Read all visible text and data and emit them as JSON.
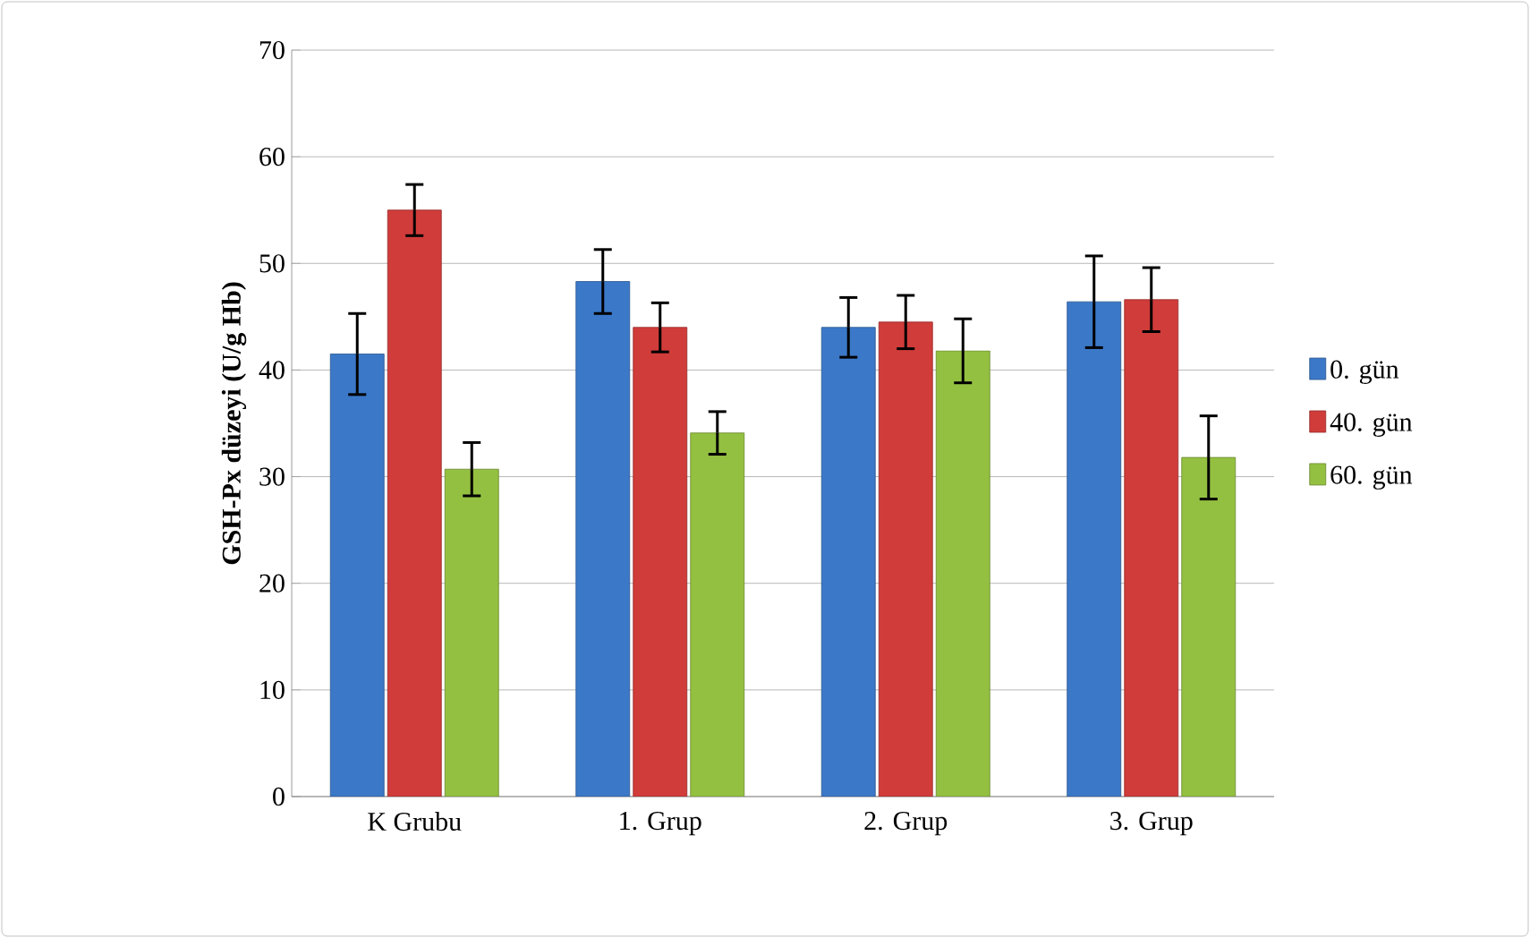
{
  "chart_data": {
    "type": "bar",
    "ylabel": "GSH-Px düzeyi (U/g Hb)",
    "categories": [
      "K Grubu",
      "1. Grup",
      "2. Grup",
      "3. Grup"
    ],
    "series": [
      {
        "name": "0. gün",
        "color": "#3b78c8",
        "values": [
          41.5,
          48.3,
          44.0,
          46.4
        ],
        "errors": [
          3.8,
          3.0,
          2.8,
          4.3
        ]
      },
      {
        "name": "40. gün",
        "color": "#d03c3a",
        "values": [
          55.0,
          44.0,
          44.5,
          46.6
        ],
        "errors": [
          2.4,
          2.3,
          2.5,
          3.0
        ]
      },
      {
        "name": "60. gün",
        "color": "#94c041",
        "values": [
          30.7,
          34.1,
          41.8,
          31.8
        ],
        "errors": [
          2.5,
          2.0,
          3.0,
          3.9
        ]
      }
    ],
    "ylim": [
      0,
      70
    ],
    "yticks": [
      0,
      10,
      20,
      30,
      40,
      50,
      60,
      70
    ],
    "grid": "y",
    "legend": "right"
  }
}
